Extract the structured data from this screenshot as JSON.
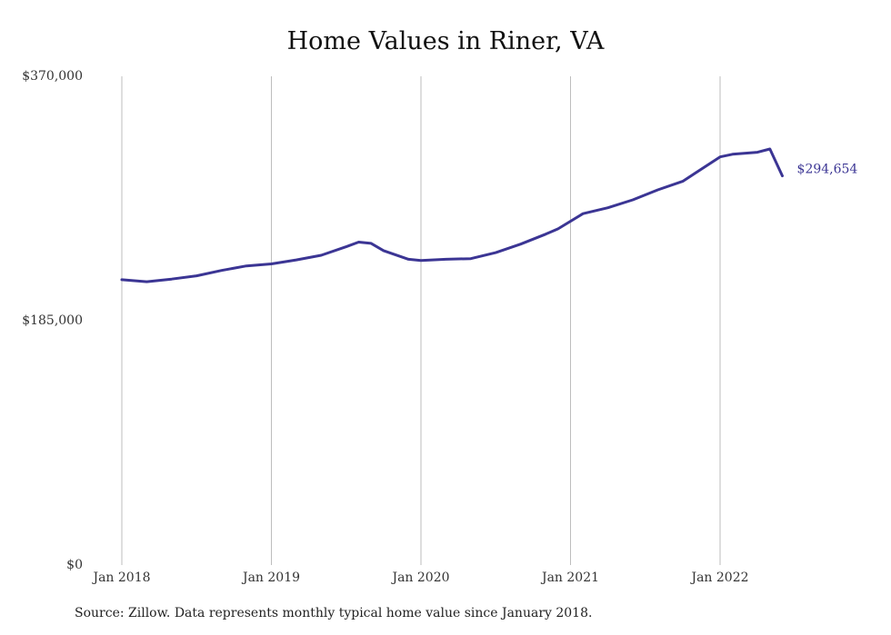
{
  "chart_data": {
    "type": "line",
    "title": "Home Values in Riner, VA",
    "xlabel": "",
    "ylabel": "",
    "ylim": [
      0,
      370000
    ],
    "y_ticks": [
      "$0",
      "$185,000",
      "$370,000"
    ],
    "x_ticks": [
      "Jan 2018",
      "Jan 2019",
      "Jan 2020",
      "Jan 2021",
      "Jan 2022"
    ],
    "grid": "vertical",
    "line_color": "#3b3594",
    "x": [
      "2018-01",
      "2018-03",
      "2018-05",
      "2018-07",
      "2018-09",
      "2018-11",
      "2019-01",
      "2019-03",
      "2019-05",
      "2019-07",
      "2019-08",
      "2019-09",
      "2019-10",
      "2019-12",
      "2020-01",
      "2020-03",
      "2020-05",
      "2020-07",
      "2020-09",
      "2020-11",
      "2020-12",
      "2021-02",
      "2021-04",
      "2021-06",
      "2021-08",
      "2021-10",
      "2022-01",
      "2022-02",
      "2022-04",
      "2022-05",
      "2022-06"
    ],
    "series": [
      {
        "values": [
          216000,
          214500,
          216500,
          219000,
          223000,
          226500,
          228000,
          231000,
          234500,
          241000,
          244500,
          243500,
          238000,
          231500,
          230500,
          231500,
          232000,
          236500,
          243000,
          250500,
          254500,
          266000,
          270500,
          276500,
          284000,
          290500,
          309000,
          311000,
          312500,
          315000,
          294654
        ]
      }
    ],
    "end_label": "$294,654"
  },
  "footer": {
    "source": "Source: Zillow. Data represents monthly typical home value since January 2018."
  }
}
